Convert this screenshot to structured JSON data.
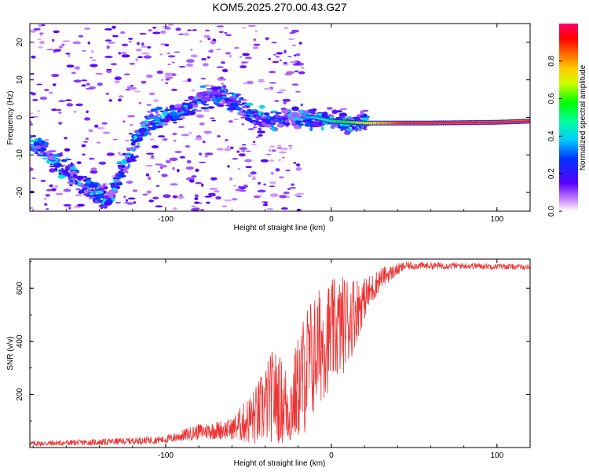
{
  "figure_title": "KOM5.2025.270.00.43.G27",
  "chart_data": [
    {
      "type": "heatmap",
      "title": "KOM5.2025.270.00.43.G27",
      "xlabel": "Height of straight line (km)",
      "ylabel": "Frequency (Hz)",
      "xlim": [
        -182,
        120
      ],
      "ylim": [
        -25,
        25
      ],
      "xticks": [
        -100,
        0,
        100
      ],
      "yticks": [
        -20,
        -10,
        0,
        10,
        20
      ],
      "colorbar": {
        "label": "Normalized spectral amplitude",
        "range": [
          0,
          1
        ],
        "ticks": [
          0.0,
          0.2,
          0.4,
          0.6,
          0.8
        ],
        "colormap": "rainbow"
      },
      "ridge": [
        {
          "x": -180,
          "y": -7
        },
        {
          "x": -165,
          "y": -12
        },
        {
          "x": -150,
          "y": -18
        },
        {
          "x": -135,
          "y": -22
        },
        {
          "x": -120,
          "y": -8
        },
        {
          "x": -110,
          "y": -1
        },
        {
          "x": -95,
          "y": 1
        },
        {
          "x": -85,
          "y": 3
        },
        {
          "x": -75,
          "y": 6
        },
        {
          "x": -65,
          "y": 5
        },
        {
          "x": -55,
          "y": 3
        },
        {
          "x": -45,
          "y": 0
        },
        {
          "x": -35,
          "y": -1
        },
        {
          "x": -20,
          "y": 0
        },
        {
          "x": -10,
          "y": 0
        },
        {
          "x": 0,
          "y": -1
        },
        {
          "x": 20,
          "y": -1.5
        },
        {
          "x": 60,
          "y": -1.5
        },
        {
          "x": 100,
          "y": -1.3
        },
        {
          "x": 120,
          "y": -1
        }
      ]
    },
    {
      "type": "line",
      "xlabel": "Height of straight line (km)",
      "ylabel": "SNR (v/v)",
      "xlim": [
        -182,
        120
      ],
      "ylim": [
        0,
        710
      ],
      "xticks": [
        -100,
        0,
        100
      ],
      "yticks": [
        200,
        400,
        600
      ],
      "color": "#ee3333",
      "envelope": [
        {
          "x": -180,
          "mean": 15,
          "amp": 10
        },
        {
          "x": -140,
          "mean": 20,
          "amp": 12
        },
        {
          "x": -100,
          "mean": 30,
          "amp": 15
        },
        {
          "x": -80,
          "mean": 60,
          "amp": 30
        },
        {
          "x": -60,
          "mean": 70,
          "amp": 40
        },
        {
          "x": -45,
          "mean": 120,
          "amp": 120
        },
        {
          "x": -35,
          "mean": 200,
          "amp": 180
        },
        {
          "x": -25,
          "mean": 150,
          "amp": 150
        },
        {
          "x": -15,
          "mean": 300,
          "amp": 250
        },
        {
          "x": -5,
          "mean": 400,
          "amp": 220
        },
        {
          "x": 10,
          "mean": 480,
          "amp": 180
        },
        {
          "x": 20,
          "mean": 560,
          "amp": 80
        },
        {
          "x": 30,
          "mean": 640,
          "amp": 40
        },
        {
          "x": 45,
          "mean": 685,
          "amp": 15
        },
        {
          "x": 80,
          "mean": 685,
          "amp": 12
        },
        {
          "x": 120,
          "mean": 680,
          "amp": 10
        }
      ]
    }
  ]
}
